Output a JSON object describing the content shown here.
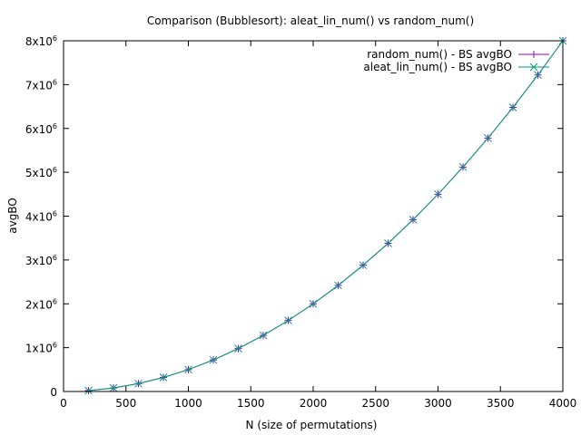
{
  "chart_data": {
    "type": "line",
    "title": "Comparison (Bubblesort): aleat_lin_num() vs random_num()",
    "xlabel": "N (size of permutations)",
    "ylabel": "avgBO",
    "xlim": [
      0,
      4000
    ],
    "ylim": [
      0,
      8000000
    ],
    "x_ticks": [
      0,
      500,
      1000,
      1500,
      2000,
      2500,
      3000,
      3500,
      4000
    ],
    "y_ticks": [
      {
        "value": 0,
        "mantissa": "0",
        "exp": ""
      },
      {
        "value": 1000000,
        "mantissa": "1x10",
        "exp": "6"
      },
      {
        "value": 2000000,
        "mantissa": "2x10",
        "exp": "6"
      },
      {
        "value": 3000000,
        "mantissa": "3x10",
        "exp": "6"
      },
      {
        "value": 4000000,
        "mantissa": "4x10",
        "exp": "6"
      },
      {
        "value": 5000000,
        "mantissa": "5x10",
        "exp": "6"
      },
      {
        "value": 6000000,
        "mantissa": "6x10",
        "exp": "6"
      },
      {
        "value": 7000000,
        "mantissa": "7x10",
        "exp": "6"
      },
      {
        "value": 8000000,
        "mantissa": "8x10",
        "exp": "6"
      }
    ],
    "x": [
      200,
      400,
      600,
      800,
      1000,
      1200,
      1400,
      1600,
      1800,
      2000,
      2200,
      2400,
      2600,
      2800,
      3000,
      3200,
      3400,
      3600,
      3800,
      4000
    ],
    "series": [
      {
        "name": "random_num() - BS avgBO",
        "color": "#9400d3",
        "marker": "plus",
        "values": [
          20000,
          80000,
          180000,
          320000,
          500000,
          720000,
          980000,
          1280000,
          1620000,
          2000000,
          2420000,
          2880000,
          3380000,
          3920000,
          4500000,
          5120000,
          5780000,
          6480000,
          7220000,
          8000000
        ]
      },
      {
        "name": "aleat_lin_num() - BS avgBO",
        "color": "#009e73",
        "marker": "cross",
        "values": [
          20000,
          80000,
          180000,
          320000,
          500000,
          720000,
          980000,
          1280000,
          1620000,
          2000000,
          2420000,
          2880000,
          3380000,
          3920000,
          4500000,
          5120000,
          5780000,
          6480000,
          7220000,
          8000000
        ]
      }
    ],
    "grid": false,
    "legend_position": "top-right"
  }
}
